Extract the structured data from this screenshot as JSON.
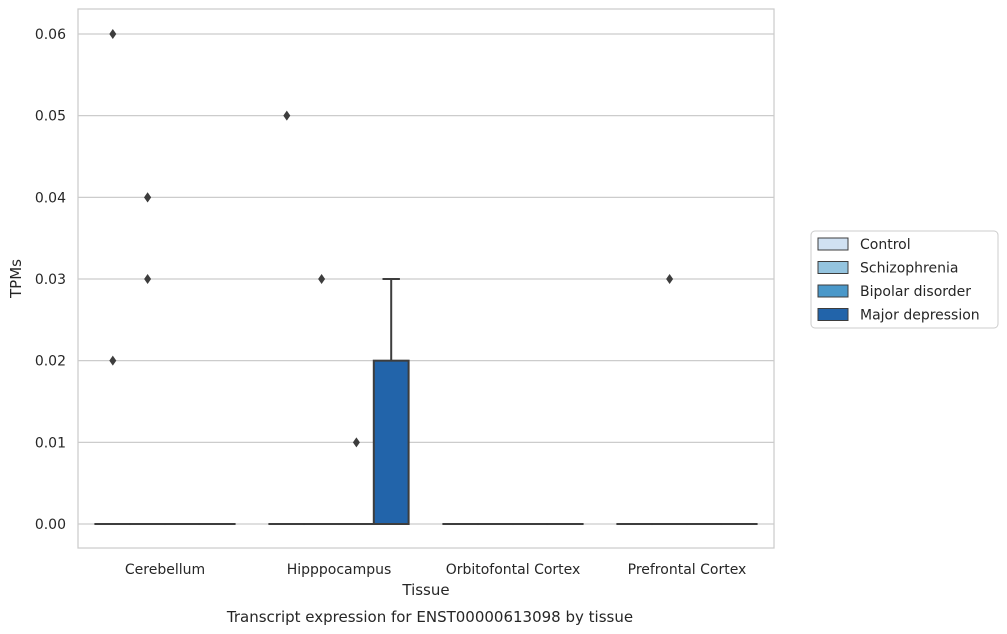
{
  "chart_data": {
    "type": "box",
    "title": "",
    "caption": "Transcript expression for ENST00000613098 by tissue",
    "xlabel": "Tissue",
    "ylabel": "TPMs",
    "ylim": [
      -0.003,
      0.063
    ],
    "yticks": [
      "0.00",
      "0.01",
      "0.02",
      "0.03",
      "0.04",
      "0.05",
      "0.06"
    ],
    "grid": "horizontal",
    "legend_position": "right",
    "categories": [
      "Cerebellum",
      "Hipppocampus",
      "Orbitofontal Cortex",
      "Prefrontal Cortex"
    ],
    "series": [
      {
        "name": "Control",
        "color": "#d0e1f2",
        "boxes": [
          {
            "q1": 0,
            "median": 0,
            "q3": 0,
            "whisker_low": 0,
            "whisker_high": 0,
            "outliers": [
              0.06,
              0.02
            ]
          },
          {
            "q1": 0,
            "median": 0,
            "q3": 0,
            "whisker_low": 0,
            "whisker_high": 0,
            "outliers": [
              0.05
            ]
          },
          {
            "q1": 0,
            "median": 0,
            "q3": 0,
            "whisker_low": 0,
            "whisker_high": 0,
            "outliers": []
          },
          {
            "q1": 0,
            "median": 0,
            "q3": 0,
            "whisker_low": 0,
            "whisker_high": 0,
            "outliers": []
          }
        ]
      },
      {
        "name": "Schizophrenia",
        "color": "#94c4df",
        "boxes": [
          {
            "q1": 0,
            "median": 0,
            "q3": 0,
            "whisker_low": 0,
            "whisker_high": 0,
            "outliers": [
              0.04,
              0.04,
              0.03
            ]
          },
          {
            "q1": 0,
            "median": 0,
            "q3": 0,
            "whisker_low": 0,
            "whisker_high": 0,
            "outliers": [
              0.03
            ]
          },
          {
            "q1": 0,
            "median": 0,
            "q3": 0,
            "whisker_low": 0,
            "whisker_high": 0,
            "outliers": []
          },
          {
            "q1": 0,
            "median": 0,
            "q3": 0,
            "whisker_low": 0,
            "whisker_high": 0,
            "outliers": [
              0.03
            ]
          }
        ]
      },
      {
        "name": "Bipolar disorder",
        "color": "#4a98c9",
        "boxes": [
          {
            "q1": 0,
            "median": 0,
            "q3": 0,
            "whisker_low": 0,
            "whisker_high": 0,
            "outliers": []
          },
          {
            "q1": 0,
            "median": 0,
            "q3": 0,
            "whisker_low": 0,
            "whisker_high": 0,
            "outliers": [
              0.01
            ]
          },
          {
            "q1": 0,
            "median": 0,
            "q3": 0,
            "whisker_low": 0,
            "whisker_high": 0,
            "outliers": []
          },
          {
            "q1": 0,
            "median": 0,
            "q3": 0,
            "whisker_low": 0,
            "whisker_high": 0,
            "outliers": []
          }
        ]
      },
      {
        "name": "Major depression",
        "color": "#2264aa",
        "boxes": [
          {
            "q1": 0,
            "median": 0,
            "q3": 0,
            "whisker_low": 0,
            "whisker_high": 0,
            "outliers": []
          },
          {
            "q1": 0,
            "median": 0,
            "q3": 0.02,
            "whisker_low": 0,
            "whisker_high": 0.03,
            "outliers": []
          },
          {
            "q1": 0,
            "median": 0,
            "q3": 0,
            "whisker_low": 0,
            "whisker_high": 0,
            "outliers": []
          },
          {
            "q1": 0,
            "median": 0,
            "q3": 0,
            "whisker_low": 0,
            "whisker_high": 0,
            "outliers": []
          }
        ]
      }
    ]
  }
}
